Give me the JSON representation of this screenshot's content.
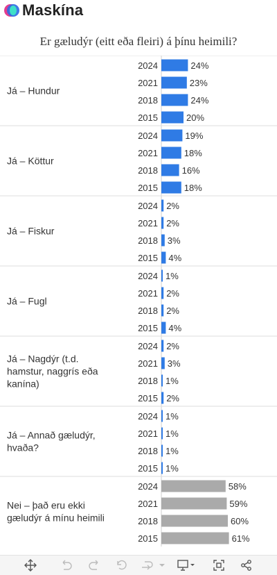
{
  "brand": {
    "name": "Maskína"
  },
  "title": "Er gæludýr (eitt eða fleiri) á þínu heimili?",
  "chart_data": {
    "type": "bar",
    "orientation": "horizontal",
    "title": "Er gæludýr (eitt eða fleiri) á þínu heimili?",
    "groups": [
      {
        "label": "Já – Hundur",
        "years": [
          "2024",
          "2021",
          "2018",
          "2015"
        ],
        "values": [
          24,
          23,
          24,
          20
        ]
      },
      {
        "label": "Já – Köttur",
        "years": [
          "2024",
          "2021",
          "2018",
          "2015"
        ],
        "values": [
          19,
          18,
          16,
          18
        ]
      },
      {
        "label": "Já – Fiskur",
        "years": [
          "2024",
          "2021",
          "2018",
          "2015"
        ],
        "values": [
          2,
          2,
          3,
          4
        ]
      },
      {
        "label": "Já – Fugl",
        "years": [
          "2024",
          "2021",
          "2018",
          "2015"
        ],
        "values": [
          1,
          2,
          2,
          4
        ]
      },
      {
        "label": "Já – Nagdýr (t.d. hamstur, naggrís eða kanína)",
        "years": [
          "2024",
          "2021",
          "2018",
          "2015"
        ],
        "values": [
          2,
          3,
          1,
          2
        ]
      },
      {
        "label": "Já – Annað gæludýr, hvaða?",
        "years": [
          "2024",
          "2021",
          "2018",
          "2015"
        ],
        "values": [
          1,
          1,
          1,
          1
        ]
      },
      {
        "label": "Nei – það eru ekki gæludýr á mínu heimili",
        "years": [
          "2024",
          "2021",
          "2018",
          "2015"
        ],
        "values": [
          58,
          59,
          60,
          61
        ]
      }
    ],
    "value_suffix": "%",
    "colors": {
      "yes": "#2f7be5",
      "no": "#aaaaaa"
    }
  },
  "toolbar": {
    "icons": [
      "move-icon",
      "undo-icon",
      "redo-icon",
      "revert-icon",
      "forward-icon",
      "dropdown-icon",
      "present-icon",
      "fullscreen-icon",
      "share-icon"
    ]
  }
}
